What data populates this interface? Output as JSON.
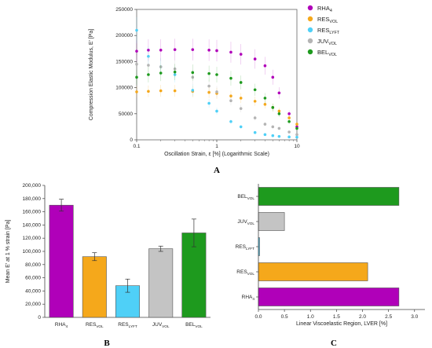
{
  "panels": {
    "a": "A",
    "b": "B",
    "c": "C"
  },
  "chart_data": [
    {
      "type": "scatter",
      "panel": "A",
      "xlabel": "Oscillation Strain, ε [%] (Logarithmic Scale)",
      "ylabel": "Compression Elastic Modulus, E' [Pa]",
      "xscale": "log",
      "xlim": [
        0.1,
        10
      ],
      "ylim": [
        0,
        250000
      ],
      "xticks": [
        "0.1",
        "1",
        "10"
      ],
      "yticks": [
        "0",
        "50000",
        "100000",
        "150000",
        "200000",
        "250000"
      ],
      "legend_position": "top-right",
      "series": [
        {
          "name": "RHA",
          "sub": "4",
          "color": "#b000b9",
          "x": [
            0.1,
            0.14,
            0.2,
            0.3,
            0.5,
            0.8,
            1.0,
            1.5,
            2,
            3,
            4,
            5,
            6,
            8,
            10
          ],
          "y": [
            170000,
            172000,
            172000,
            173000,
            173000,
            172000,
            171000,
            168000,
            164000,
            155000,
            142000,
            120000,
            90000,
            50000,
            25000
          ]
        },
        {
          "name": "RES",
          "sub": "VOL",
          "color": "#f5a81b",
          "x": [
            0.1,
            0.14,
            0.2,
            0.3,
            0.5,
            0.8,
            1.0,
            1.5,
            2,
            3,
            4,
            5,
            6,
            8,
            10
          ],
          "y": [
            92000,
            93000,
            94000,
            94000,
            93000,
            91000,
            89000,
            84000,
            80000,
            74000,
            68000,
            62000,
            55000,
            42000,
            30000
          ]
        },
        {
          "name": "RES",
          "sub": "LYFT",
          "color": "#4fd0f7",
          "x": [
            0.1,
            0.14,
            0.2,
            0.3,
            0.5,
            0.8,
            1.0,
            1.5,
            2,
            3,
            4,
            5,
            6,
            8,
            10
          ],
          "y": [
            210000,
            160000,
            140000,
            125000,
            95000,
            70000,
            55000,
            35000,
            25000,
            14000,
            10000,
            8000,
            6500,
            5500,
            5000
          ]
        },
        {
          "name": "JUV",
          "sub": "VOL",
          "color": "#b4b4b4",
          "x": [
            0.1,
            0.14,
            0.2,
            0.3,
            0.5,
            0.8,
            1.0,
            1.5,
            2,
            3,
            4,
            5,
            6,
            8,
            10
          ],
          "y": [
            145000,
            143000,
            140000,
            136000,
            120000,
            103000,
            92000,
            75000,
            60000,
            42000,
            30000,
            25000,
            22000,
            15000,
            10000
          ]
        },
        {
          "name": "BEL",
          "sub": "VOL",
          "color": "#1e9a1e",
          "x": [
            0.1,
            0.14,
            0.2,
            0.3,
            0.5,
            0.8,
            1.0,
            1.5,
            2,
            3,
            4,
            5,
            6,
            8,
            10
          ],
          "y": [
            120000,
            125000,
            128000,
            130000,
            129000,
            127000,
            125000,
            118000,
            110000,
            96000,
            80000,
            62000,
            50000,
            35000,
            22000
          ]
        }
      ]
    },
    {
      "type": "bar",
      "panel": "B",
      "ylabel": "Mean E' at 1 % strain [Pa]",
      "ylim": [
        0,
        200000
      ],
      "yticks": [
        "0",
        "20,000",
        "40,000",
        "60,000",
        "80,000",
        "100,000",
        "120,000",
        "140,000",
        "160,000",
        "180,000",
        "200,000"
      ],
      "categories": [
        {
          "name": "RHA",
          "sub": "4"
        },
        {
          "name": "RES",
          "sub": "VOL"
        },
        {
          "name": "RES",
          "sub": "LYFT"
        },
        {
          "name": "JUV",
          "sub": "VOL"
        },
        {
          "name": "BEL",
          "sub": "VOL"
        }
      ],
      "values": [
        170000,
        92000,
        48000,
        104000,
        128000
      ],
      "errors": [
        9000,
        6000,
        10000,
        4000,
        21000
      ],
      "colors": [
        "#b000b9",
        "#f5a81b",
        "#4fd0f7",
        "#c4c4c4",
        "#1e9a1e"
      ]
    },
    {
      "type": "bar",
      "orientation": "horizontal",
      "panel": "C",
      "xlabel": "Linear Viscoelastic Region, LVER [%]",
      "xlim": [
        0,
        3.2
      ],
      "xticks": [
        "0.0",
        "0.5",
        "1.0",
        "1.5",
        "2.0",
        "2.5",
        "3.0"
      ],
      "categories": [
        {
          "name": "BEL",
          "sub": "VOL"
        },
        {
          "name": "JUV",
          "sub": "VOL"
        },
        {
          "name": "RES",
          "sub": "LYFT"
        },
        {
          "name": "RES",
          "sub": "VOL"
        },
        {
          "name": "RHA",
          "sub": "4"
        }
      ],
      "values": [
        2.7,
        0.5,
        0.02,
        2.1,
        2.7
      ],
      "colors": [
        "#1e9a1e",
        "#c4c4c4",
        "#4fd0f7",
        "#f5a81b",
        "#b000b9"
      ]
    }
  ]
}
